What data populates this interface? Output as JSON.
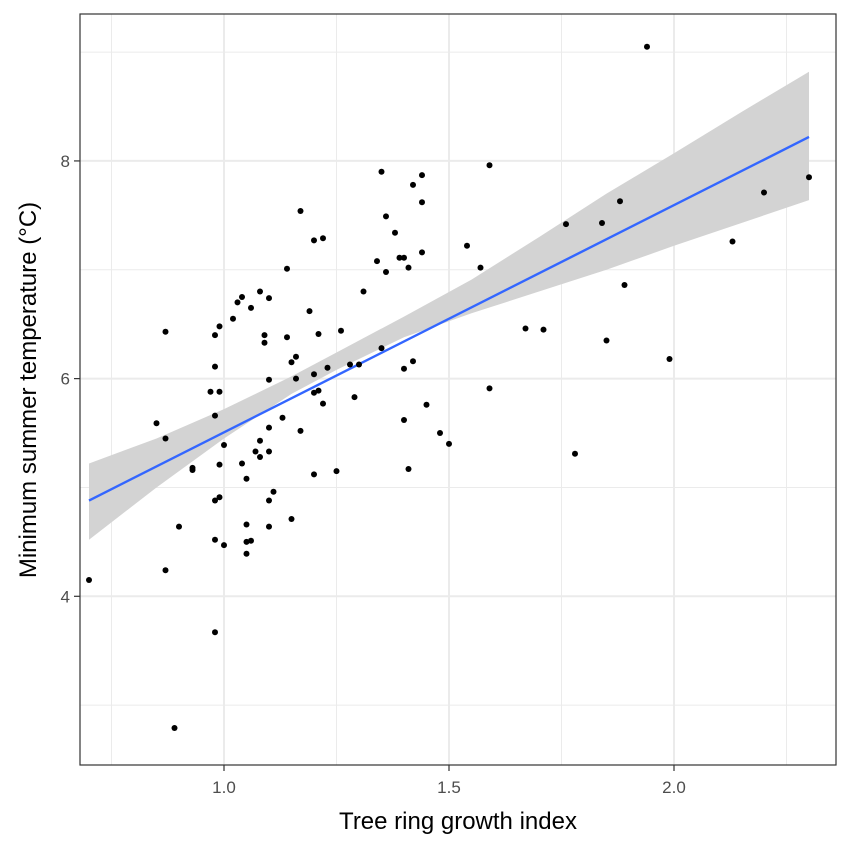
{
  "chart_data": {
    "type": "scatter",
    "title": "",
    "xlabel": "Tree ring growth index",
    "ylabel": "Minimum summer temperature (°C)",
    "xlim": [
      0.68,
      2.36
    ],
    "ylim": [
      2.45,
      9.35
    ],
    "x_major_ticks": [
      1.0,
      1.5,
      2.0
    ],
    "x_tick_labels": [
      "1.0",
      "1.5",
      "2.0"
    ],
    "x_minor_ticks": [
      0.75,
      1.25,
      1.75,
      2.25
    ],
    "y_major_ticks": [
      4,
      6,
      8
    ],
    "y_tick_labels": [
      "4",
      "6",
      "8"
    ],
    "y_minor_ticks": [
      3,
      5,
      7,
      9
    ],
    "grid": true,
    "colors": {
      "fit_line": "#3366ff",
      "ribbon": "#d3d3d3",
      "points": "#000000",
      "grid": "#ebebeb",
      "panel_border": "#333333"
    },
    "fit": {
      "x": [
        0.7,
        2.3
      ],
      "y": [
        4.88,
        8.22
      ]
    },
    "confidence_band": {
      "x": [
        0.7,
        0.85,
        1.0,
        1.15,
        1.25,
        1.4,
        1.55,
        1.7,
        1.85,
        2.0,
        2.15,
        2.3
      ],
      "lower": [
        4.52,
        5.0,
        5.45,
        5.86,
        6.08,
        6.38,
        6.6,
        6.8,
        7.0,
        7.22,
        7.43,
        7.64
      ],
      "upper": [
        5.22,
        5.45,
        5.72,
        6.02,
        6.24,
        6.57,
        6.91,
        7.3,
        7.7,
        8.07,
        8.45,
        8.82
      ]
    },
    "points": [
      [
        0.7,
        4.15
      ],
      [
        0.85,
        5.59
      ],
      [
        0.87,
        6.43
      ],
      [
        0.87,
        5.45
      ],
      [
        0.87,
        4.24
      ],
      [
        0.89,
        2.79
      ],
      [
        0.9,
        4.64
      ],
      [
        0.93,
        5.18
      ],
      [
        0.93,
        5.16
      ],
      [
        0.97,
        5.88
      ],
      [
        0.98,
        6.4
      ],
      [
        0.98,
        6.11
      ],
      [
        0.98,
        5.66
      ],
      [
        0.98,
        4.88
      ],
      [
        0.98,
        4.52
      ],
      [
        0.98,
        3.67
      ],
      [
        0.99,
        6.48
      ],
      [
        0.99,
        5.88
      ],
      [
        0.99,
        5.21
      ],
      [
        0.99,
        4.91
      ],
      [
        1.0,
        5.39
      ],
      [
        1.0,
        4.47
      ],
      [
        1.02,
        6.55
      ],
      [
        1.03,
        6.7
      ],
      [
        1.04,
        6.75
      ],
      [
        1.04,
        5.22
      ],
      [
        1.05,
        5.08
      ],
      [
        1.05,
        4.66
      ],
      [
        1.05,
        4.5
      ],
      [
        1.05,
        4.39
      ],
      [
        1.06,
        6.65
      ],
      [
        1.06,
        4.51
      ],
      [
        1.07,
        5.33
      ],
      [
        1.08,
        6.8
      ],
      [
        1.08,
        5.43
      ],
      [
        1.08,
        5.28
      ],
      [
        1.09,
        6.4
      ],
      [
        1.09,
        6.33
      ],
      [
        1.1,
        6.74
      ],
      [
        1.1,
        5.99
      ],
      [
        1.1,
        5.55
      ],
      [
        1.1,
        5.33
      ],
      [
        1.1,
        4.88
      ],
      [
        1.1,
        4.64
      ],
      [
        1.11,
        4.96
      ],
      [
        1.13,
        5.64
      ],
      [
        1.14,
        7.01
      ],
      [
        1.14,
        6.38
      ],
      [
        1.15,
        6.15
      ],
      [
        1.15,
        4.71
      ],
      [
        1.16,
        6.2
      ],
      [
        1.16,
        6.0
      ],
      [
        1.17,
        7.54
      ],
      [
        1.17,
        5.52
      ],
      [
        1.19,
        6.62
      ],
      [
        1.2,
        7.27
      ],
      [
        1.2,
        6.04
      ],
      [
        1.2,
        5.87
      ],
      [
        1.2,
        5.12
      ],
      [
        1.21,
        6.41
      ],
      [
        1.21,
        5.89
      ],
      [
        1.22,
        7.29
      ],
      [
        1.22,
        5.77
      ],
      [
        1.23,
        6.1
      ],
      [
        1.25,
        5.15
      ],
      [
        1.26,
        6.44
      ],
      [
        1.28,
        6.13
      ],
      [
        1.29,
        5.83
      ],
      [
        1.3,
        6.13
      ],
      [
        1.31,
        6.8
      ],
      [
        1.34,
        7.08
      ],
      [
        1.35,
        7.9
      ],
      [
        1.35,
        6.28
      ],
      [
        1.36,
        7.49
      ],
      [
        1.36,
        6.98
      ],
      [
        1.38,
        7.34
      ],
      [
        1.39,
        7.11
      ],
      [
        1.4,
        7.11
      ],
      [
        1.4,
        6.09
      ],
      [
        1.4,
        5.62
      ],
      [
        1.41,
        7.02
      ],
      [
        1.41,
        5.17
      ],
      [
        1.42,
        7.78
      ],
      [
        1.42,
        6.16
      ],
      [
        1.44,
        7.87
      ],
      [
        1.44,
        7.62
      ],
      [
        1.44,
        7.16
      ],
      [
        1.45,
        5.76
      ],
      [
        1.48,
        5.5
      ],
      [
        1.5,
        5.4
      ],
      [
        1.54,
        7.22
      ],
      [
        1.57,
        7.02
      ],
      [
        1.59,
        7.96
      ],
      [
        1.59,
        5.91
      ],
      [
        1.67,
        6.46
      ],
      [
        1.71,
        6.45
      ],
      [
        1.76,
        7.42
      ],
      [
        1.78,
        5.31
      ],
      [
        1.84,
        7.43
      ],
      [
        1.85,
        6.35
      ],
      [
        1.88,
        7.63
      ],
      [
        1.89,
        6.86
      ],
      [
        1.94,
        9.05
      ],
      [
        1.99,
        6.18
      ],
      [
        2.13,
        7.26
      ],
      [
        2.2,
        7.71
      ],
      [
        2.3,
        7.85
      ]
    ]
  }
}
